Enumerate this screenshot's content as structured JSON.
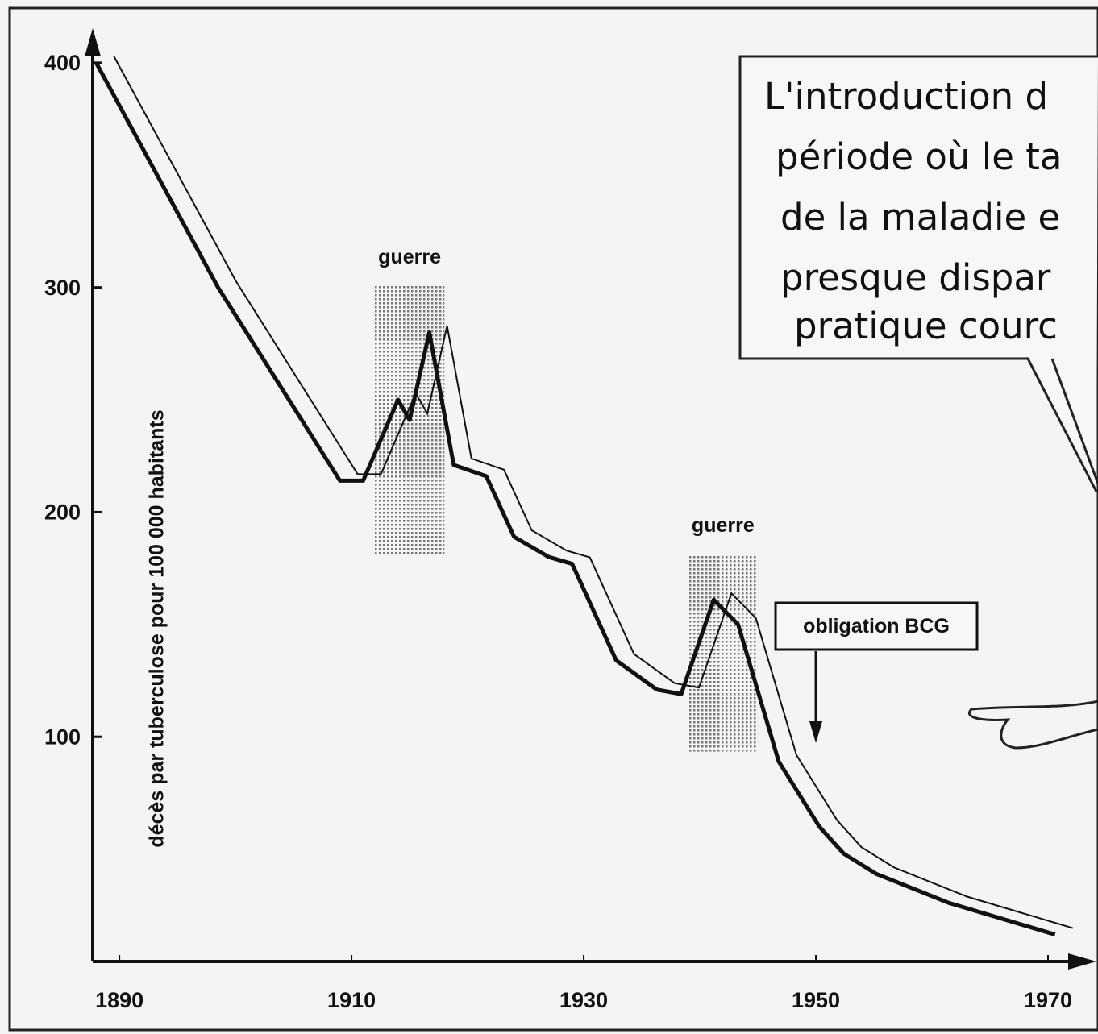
{
  "chart_data": {
    "type": "line",
    "y_label": "décès par tuberculose pour 100 000 habitants",
    "x": [
      1888,
      1898.5,
      1909,
      1911,
      1914,
      1915,
      1916.7,
      1918.8,
      1921.6,
      1924,
      1927,
      1929,
      1932.8,
      1936.3,
      1938.4,
      1941.2,
      1943.3,
      1946.8,
      1950.3,
      1952.4,
      1955.2,
      1961.5,
      1970.6
    ],
    "series": [
      {
        "color": "#111111",
        "values": [
          400,
          300,
          214,
          214,
          250,
          241,
          280,
          221,
          216,
          189,
          180,
          177,
          134,
          121,
          119,
          161,
          150,
          89,
          60,
          48,
          39,
          26,
          12
        ]
      }
    ],
    "xlim": [
      1887.7,
      1972.5
    ],
    "xticks": [
      1890,
      1910,
      1930,
      1950,
      1970
    ],
    "ylim": [
      0,
      410
    ],
    "yticks": [
      100,
      200,
      300,
      400
    ],
    "periods": [
      {
        "label": "guerre",
        "x": [
          1912,
          1918
        ]
      },
      {
        "label": "guerre",
        "x": [
          1939,
          1945
        ]
      }
    ],
    "arrow_annotation": {
      "label": "obligation BCG",
      "x": 1950
    },
    "callout": [
      "L'introduction d",
      "période où le ta",
      "de la maladie e",
      "presque dispar",
      "pratique courc"
    ]
  }
}
